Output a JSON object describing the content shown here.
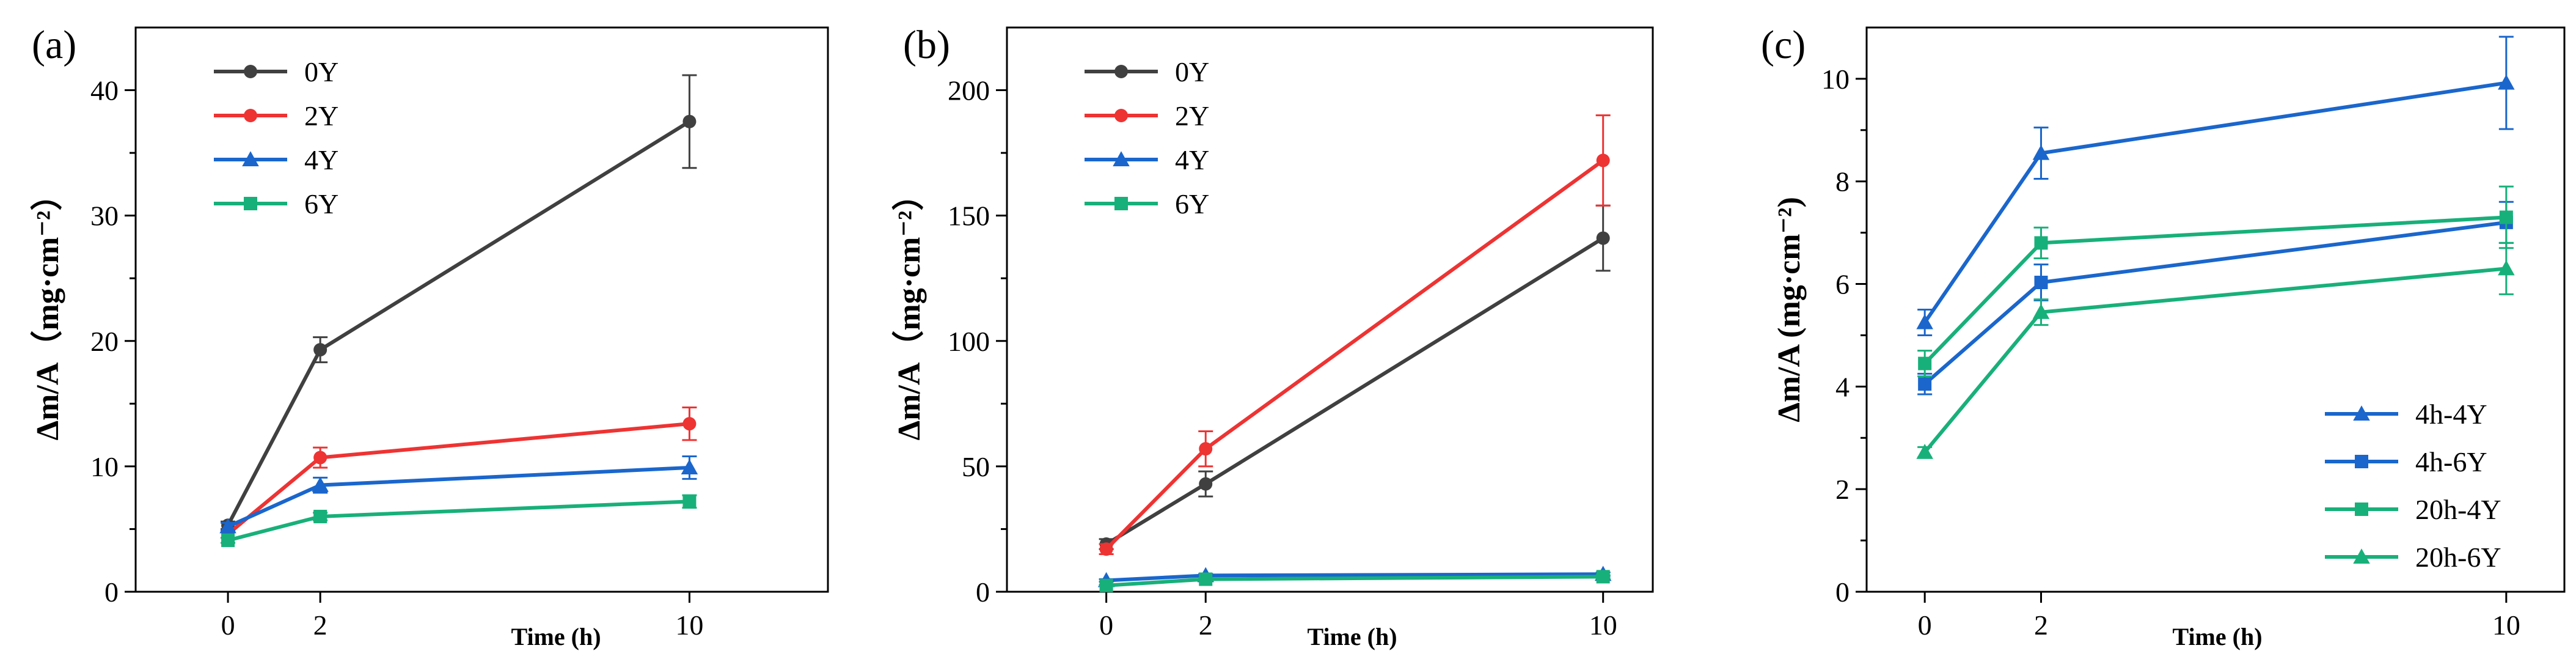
{
  "colors": {
    "0Y": "#404040",
    "2Y": "#ee3333",
    "4Y": "#1a66cc",
    "6Y": "#18b07a"
  },
  "chart_data": [
    {
      "type": "line",
      "panel_label": "(a)",
      "xlabel": "Time (h)",
      "ylabel": "Δm/A（mg·cm⁻²）",
      "xlim": [
        -2,
        13
      ],
      "ylim": [
        0,
        45
      ],
      "x_ticks": [
        0,
        2,
        10
      ],
      "y_ticks": [
        0,
        10,
        20,
        30,
        40
      ],
      "grid": false,
      "legend_position": "top-left",
      "series": [
        {
          "name": "0Y",
          "color_key": "0Y",
          "marker": "circle",
          "x": [
            0,
            2,
            10
          ],
          "y": [
            5.3,
            19.3,
            37.5
          ],
          "err": [
            0.3,
            1.0,
            3.7
          ]
        },
        {
          "name": "2Y",
          "color_key": "2Y",
          "marker": "circle",
          "x": [
            0,
            2,
            10
          ],
          "y": [
            4.6,
            10.7,
            13.4
          ],
          "err": [
            0.3,
            0.8,
            1.3
          ]
        },
        {
          "name": "4Y",
          "color_key": "4Y",
          "marker": "triangle",
          "x": [
            0,
            2,
            10
          ],
          "y": [
            5.2,
            8.5,
            9.9
          ],
          "err": [
            0.3,
            0.6,
            0.9
          ]
        },
        {
          "name": "6Y",
          "color_key": "6Y",
          "marker": "square",
          "x": [
            0,
            2,
            10
          ],
          "y": [
            4.1,
            6.0,
            7.2
          ],
          "err": [
            0.2,
            0.3,
            0.5
          ]
        }
      ]
    },
    {
      "type": "line",
      "panel_label": "(b)",
      "xlabel": "Time (h)",
      "ylabel": "Δm/A（mg·cm⁻²）",
      "xlim": [
        -2,
        11
      ],
      "ylim": [
        0,
        225
      ],
      "x_ticks": [
        0,
        2,
        10
      ],
      "y_ticks": [
        0,
        50,
        100,
        150,
        200
      ],
      "grid": false,
      "legend_position": "top-left",
      "series": [
        {
          "name": "0Y",
          "color_key": "0Y",
          "marker": "circle",
          "x": [
            0,
            2,
            10
          ],
          "y": [
            19,
            43,
            141
          ],
          "err": [
            2,
            5,
            13
          ]
        },
        {
          "name": "2Y",
          "color_key": "2Y",
          "marker": "circle",
          "x": [
            0,
            2,
            10
          ],
          "y": [
            17,
            57,
            172
          ],
          "err": [
            2,
            7,
            18
          ]
        },
        {
          "name": "4Y",
          "color_key": "4Y",
          "marker": "triangle",
          "x": [
            0,
            2,
            10
          ],
          "y": [
            4.5,
            6.5,
            7.0
          ],
          "err": [
            0.5,
            0.6,
            0.7
          ]
        },
        {
          "name": "6Y",
          "color_key": "6Y",
          "marker": "square",
          "x": [
            0,
            2,
            10
          ],
          "y": [
            2.5,
            5.0,
            6.0
          ],
          "err": [
            0.3,
            0.5,
            0.6
          ]
        }
      ]
    },
    {
      "type": "line",
      "panel_label": "(c)",
      "xlabel": "Time (h)",
      "ylabel": "Δm/A (mg·cm⁻²)",
      "xlim": [
        -1,
        11
      ],
      "ylim": [
        0,
        11
      ],
      "x_ticks": [
        0,
        2,
        10
      ],
      "y_ticks": [
        0,
        2,
        4,
        6,
        8,
        10
      ],
      "grid": false,
      "legend_position": "bottom-right",
      "series": [
        {
          "name": "4h-4Y",
          "color_key": "4Y",
          "marker": "triangle",
          "x": [
            0,
            2,
            10
          ],
          "y": [
            5.25,
            8.55,
            9.92
          ],
          "err": [
            0.25,
            0.5,
            0.9
          ]
        },
        {
          "name": "4h-6Y",
          "color_key": "4Y",
          "marker": "square",
          "x": [
            0,
            2,
            10
          ],
          "y": [
            4.05,
            6.03,
            7.2
          ],
          "err": [
            0.2,
            0.35,
            0.4
          ]
        },
        {
          "name": "20h-4Y",
          "color_key": "6Y",
          "marker": "square",
          "x": [
            0,
            2,
            10
          ],
          "y": [
            4.45,
            6.8,
            7.3
          ],
          "err": [
            0.25,
            0.3,
            0.6
          ]
        },
        {
          "name": "20h-6Y",
          "color_key": "6Y",
          "marker": "triangle",
          "x": [
            0,
            2,
            10
          ],
          "y": [
            2.72,
            5.45,
            6.3
          ],
          "err": [
            0.1,
            0.25,
            0.5
          ]
        }
      ]
    }
  ]
}
